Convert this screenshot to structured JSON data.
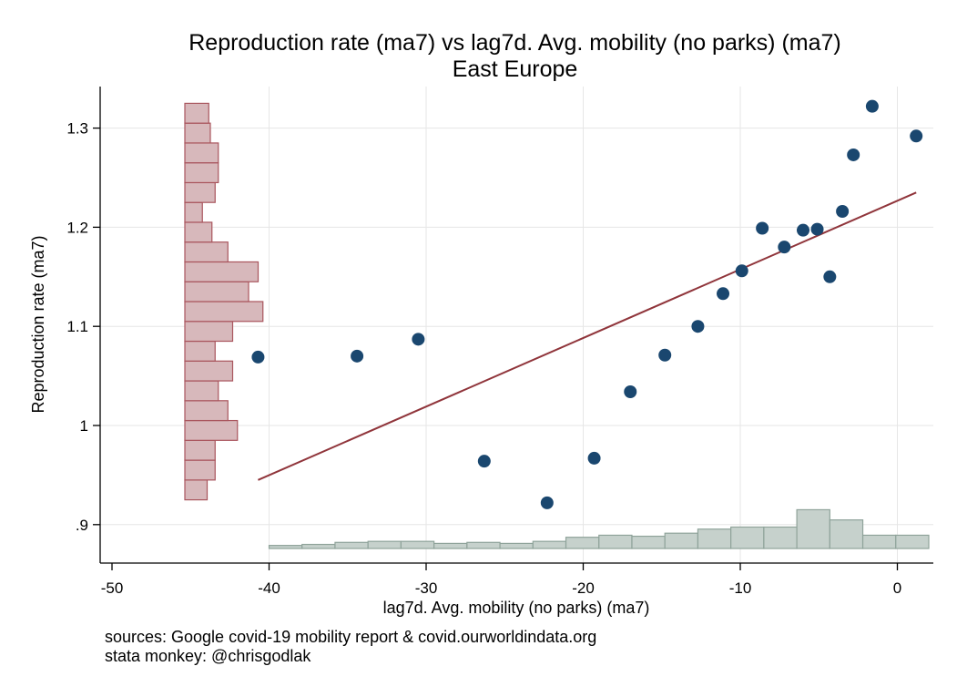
{
  "chart_data": {
    "type": "scatter",
    "title": "Reproduction rate (ma7) vs lag7d. Avg. mobility (no parks) (ma7)",
    "subtitle": "East Europe",
    "xlabel": "lag7d. Avg. mobility (no parks) (ma7)",
    "ylabel": "Reproduction rate (ma7)",
    "xlim": [
      -50,
      2
    ],
    "ylim": [
      0.86,
      1.35
    ],
    "x_ticks": [
      -50,
      -40,
      -30,
      -20,
      -10,
      0
    ],
    "x_tick_labels": [
      "-50",
      "-40",
      "-30",
      "-20",
      "-10",
      "0"
    ],
    "y_ticks": [
      0.9,
      1.0,
      1.1,
      1.2,
      1.3
    ],
    "y_tick_labels": [
      ".9",
      "1",
      "1.1",
      "1.2",
      "1.3"
    ],
    "grid": true,
    "points": [
      {
        "x": -40.7,
        "y": 1.069
      },
      {
        "x": -34.4,
        "y": 1.07
      },
      {
        "x": -30.5,
        "y": 1.087
      },
      {
        "x": -26.3,
        "y": 0.964
      },
      {
        "x": -22.3,
        "y": 0.922
      },
      {
        "x": -19.3,
        "y": 0.967
      },
      {
        "x": -17.0,
        "y": 1.034
      },
      {
        "x": -14.8,
        "y": 1.071
      },
      {
        "x": -12.7,
        "y": 1.1
      },
      {
        "x": -11.1,
        "y": 1.133
      },
      {
        "x": -9.9,
        "y": 1.156
      },
      {
        "x": -8.6,
        "y": 1.199
      },
      {
        "x": -7.2,
        "y": 1.18
      },
      {
        "x": -6.0,
        "y": 1.197
      },
      {
        "x": -5.1,
        "y": 1.198
      },
      {
        "x": -4.3,
        "y": 1.15
      },
      {
        "x": -3.5,
        "y": 1.216
      },
      {
        "x": -2.8,
        "y": 1.273
      },
      {
        "x": -1.6,
        "y": 1.322
      },
      {
        "x": 1.2,
        "y": 1.292
      }
    ],
    "fit_line": {
      "x": [
        -40.7,
        1.2
      ],
      "y": [
        0.945,
        1.235
      ]
    },
    "x_histogram": {
      "bin_width": 2.1,
      "bins_start": [
        -40.0,
        -37.9,
        -35.8,
        -33.7,
        -31.6,
        -29.5,
        -27.4,
        -25.3,
        -23.2,
        -21.1,
        -19.0,
        -16.9,
        -14.8,
        -12.7,
        -10.6,
        -8.5,
        -6.4,
        -4.3,
        -2.2,
        -0.1
      ],
      "heights": [
        0.3,
        0.4,
        0.6,
        0.7,
        0.7,
        0.5,
        0.6,
        0.5,
        0.7,
        1.1,
        1.3,
        1.2,
        1.5,
        1.9,
        2.1,
        2.1,
        3.8,
        2.8,
        1.3,
        1.3
      ]
    },
    "y_histogram": {
      "bins_start": [
        0.925,
        0.945,
        0.965,
        0.985,
        1.005,
        1.025,
        1.045,
        1.065,
        1.085,
        1.105,
        1.125,
        1.145,
        1.165,
        1.185,
        1.205,
        1.225,
        1.245,
        1.265,
        1.285,
        1.305
      ],
      "bin_width": 0.02,
      "lengths": [
        1.4,
        1.9,
        1.9,
        3.3,
        2.7,
        2.1,
        3.0,
        1.9,
        3.0,
        4.9,
        4.0,
        4.6,
        2.7,
        1.7,
        1.1,
        1.9,
        2.1,
        2.1,
        1.6,
        1.5
      ]
    },
    "colors": {
      "points": "#1a476f",
      "fit_line": "#90353b",
      "y_hist_fill": "#d7b8bb",
      "y_hist_stroke": "#a9555d",
      "x_hist_fill": "#c6d1cc",
      "x_hist_stroke": "#8fa39a",
      "grid": "#e6e6e6"
    }
  },
  "notes": {
    "line1": "sources: Google covid-19 mobility report & covid.ourworldindata.org",
    "line2": "stata monkey: @chrisgodlak"
  }
}
